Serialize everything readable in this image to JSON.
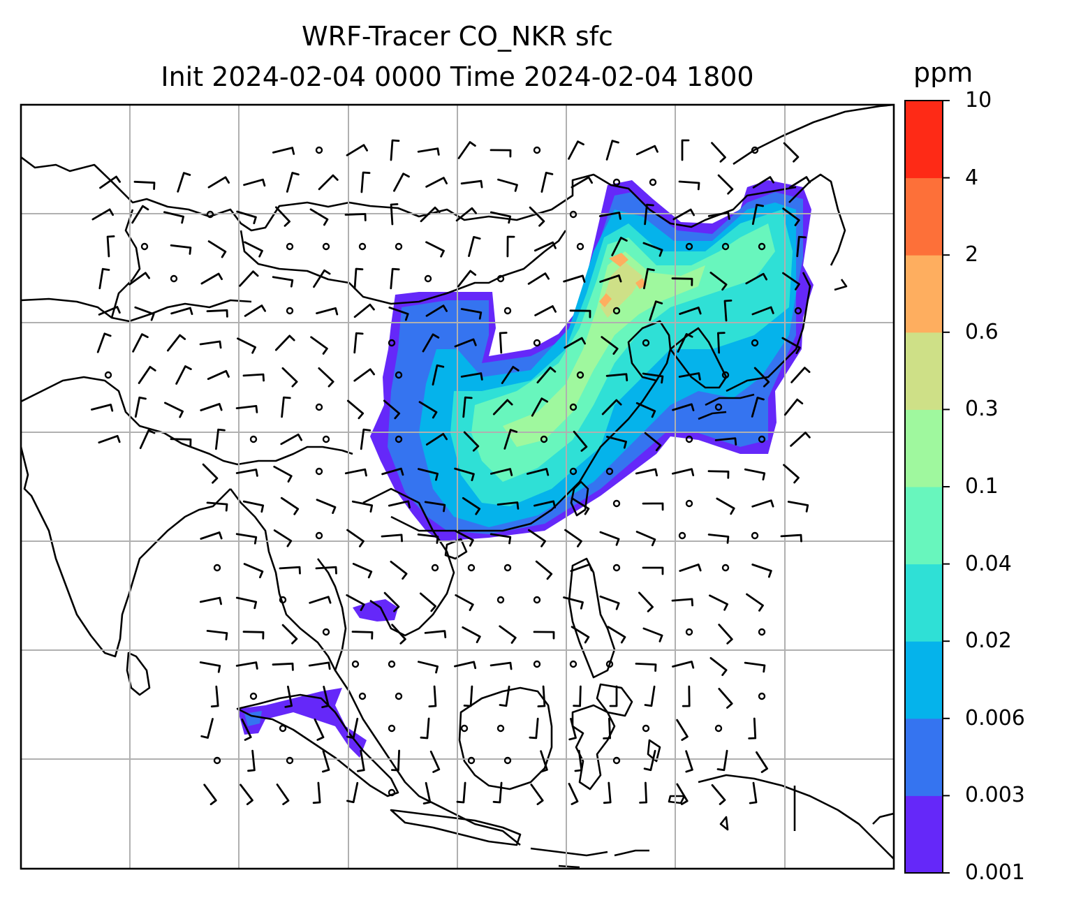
{
  "title": {
    "line1": "WRF-Tracer CO_NKR sfc",
    "line2": "Init 2024-02-04 0000 Time 2024-02-04 1800"
  },
  "colorbar": {
    "unit": "ppm",
    "tick_labels": [
      "0.001",
      "0.003",
      "0.006",
      "0.02",
      "0.04",
      "0.1",
      "0.3",
      "0.6",
      "2",
      "4",
      "10"
    ],
    "colors": [
      "#6528f9",
      "#3574f0",
      "#05b3eb",
      "#2fe0d6",
      "#68f6bd",
      "#9ff89e",
      "#cee087",
      "#feae5f",
      "#fd7039",
      "#fe2a16"
    ]
  },
  "map": {
    "background": "#ffffff",
    "coastline_color": "#000000",
    "gridline_color": "#b0b0b0",
    "wind_barb_color": "#000000",
    "calm_marker": "circle"
  }
}
